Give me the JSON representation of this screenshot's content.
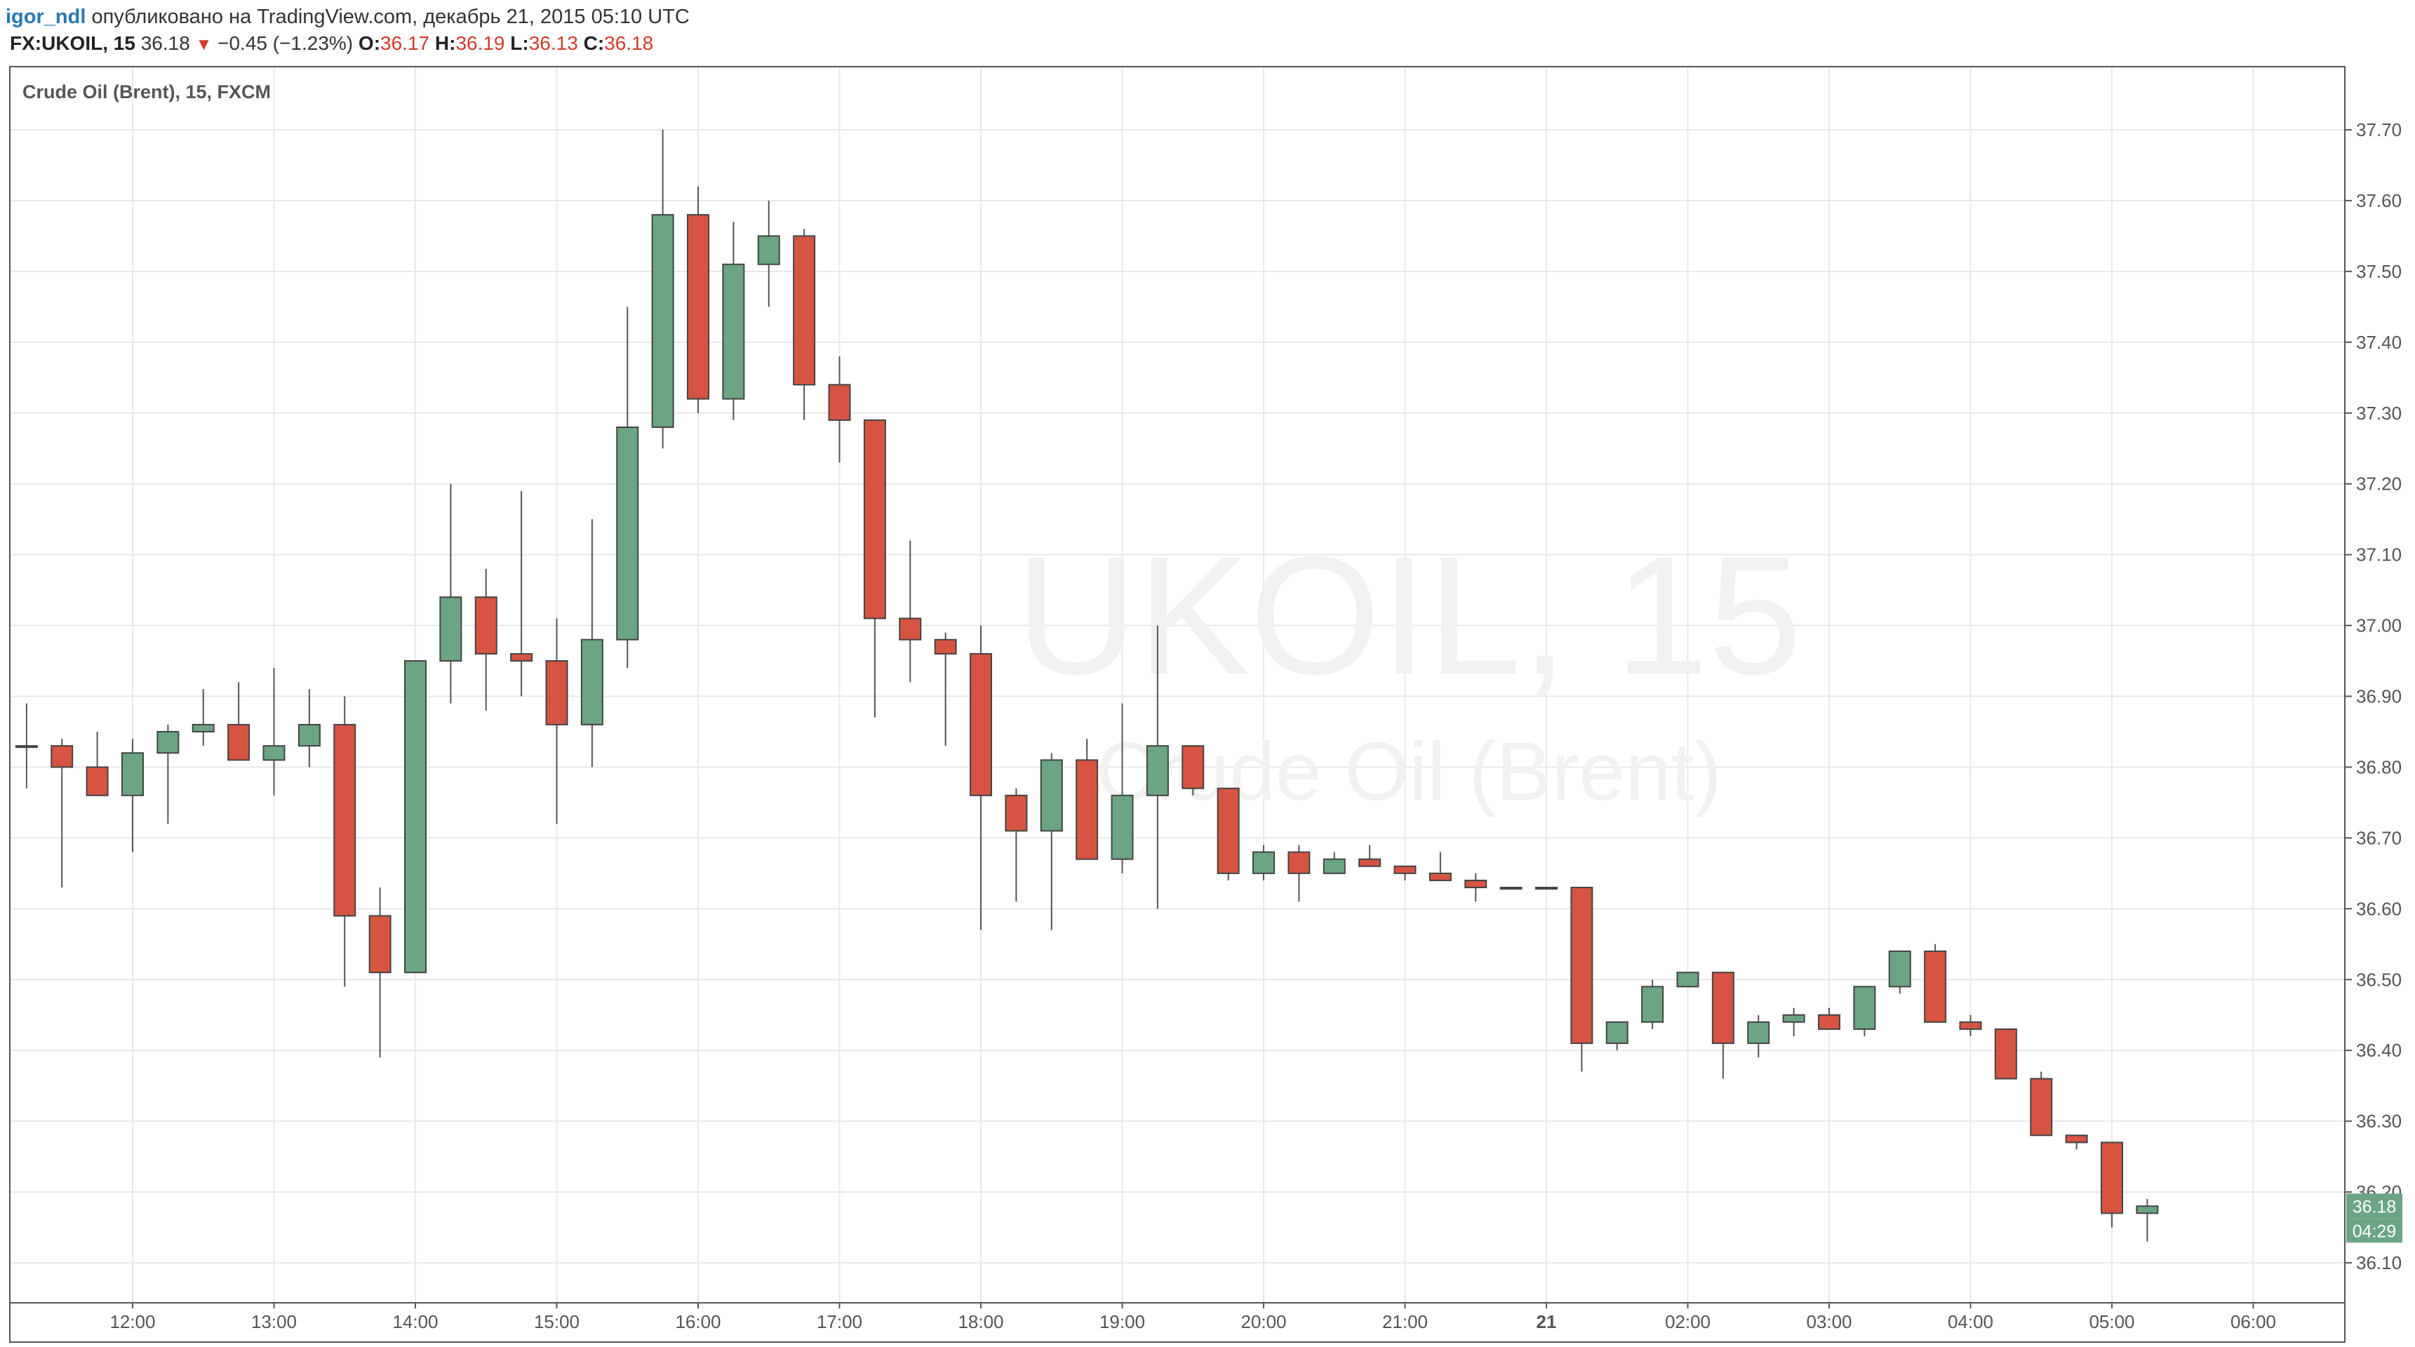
{
  "header": {
    "user": "igor_ndl",
    "published_text": "опубликовано на TradingView.com, декабрь 21, 2015 05:10 UTC",
    "symbol": "FX:UKOIL, 15",
    "last": "36.18",
    "change_arrow": "▼",
    "change": "−0.45 (−1.23%)",
    "o_label": "O:",
    "o_val": "36.17",
    "h_label": "H:",
    "h_val": "36.19",
    "l_label": "L:",
    "l_val": "36.13",
    "c_label": "C:",
    "c_val": "36.18"
  },
  "colors": {
    "up": "#6ba583",
    "down": "#d75442",
    "grid": "#e8e8e8",
    "border": "#555555"
  },
  "chart_data": {
    "type": "candlestick",
    "title": "Crude Oil (Brent), 15, FXCM",
    "watermark_symbol": "UKOIL, 15",
    "watermark_name": "Crude Oil (Brent)",
    "interval_minutes": 15,
    "y_ticks": [
      "37.70",
      "37.60",
      "37.50",
      "37.40",
      "37.30",
      "37.20",
      "37.10",
      "37.00",
      "36.90",
      "36.80",
      "36.70",
      "36.60",
      "36.50",
      "36.40",
      "36.30",
      "36.20",
      "36.10"
    ],
    "ylim": [
      36.04,
      37.78
    ],
    "x_ticks": [
      {
        "label": "12:00",
        "t": 0
      },
      {
        "label": "13:00",
        "t": 60
      },
      {
        "label": "14:00",
        "t": 120
      },
      {
        "label": "15:00",
        "t": 180
      },
      {
        "label": "16:00",
        "t": 240
      },
      {
        "label": "17:00",
        "t": 300
      },
      {
        "label": "18:00",
        "t": 360
      },
      {
        "label": "19:00",
        "t": 420
      },
      {
        "label": "20:00",
        "t": 480
      },
      {
        "label": "21:00",
        "t": 540
      },
      {
        "label": "21",
        "t": 600,
        "bold": true
      },
      {
        "label": "02:00",
        "t": 660
      },
      {
        "label": "03:00",
        "t": 720
      },
      {
        "label": "04:00",
        "t": 780
      },
      {
        "label": "05:00",
        "t": 840
      },
      {
        "label": "06:00",
        "t": 900
      }
    ],
    "last_price_label": "36.18",
    "countdown_label": "04:29",
    "candles": [
      {
        "t": -45,
        "o": 36.83,
        "h": 36.89,
        "l": 36.77,
        "c": 36.83
      },
      {
        "t": -30,
        "o": 36.83,
        "h": 36.84,
        "l": 36.63,
        "c": 36.8
      },
      {
        "t": -15,
        "o": 36.8,
        "h": 36.85,
        "l": 36.76,
        "c": 36.76
      },
      {
        "t": 0,
        "o": 36.76,
        "h": 36.84,
        "l": 36.68,
        "c": 36.82
      },
      {
        "t": 15,
        "o": 36.82,
        "h": 36.86,
        "l": 36.72,
        "c": 36.85
      },
      {
        "t": 30,
        "o": 36.85,
        "h": 36.91,
        "l": 36.83,
        "c": 36.86
      },
      {
        "t": 45,
        "o": 36.86,
        "h": 36.92,
        "l": 36.81,
        "c": 36.81
      },
      {
        "t": 60,
        "o": 36.81,
        "h": 36.94,
        "l": 36.76,
        "c": 36.83
      },
      {
        "t": 75,
        "o": 36.83,
        "h": 36.91,
        "l": 36.8,
        "c": 36.86
      },
      {
        "t": 90,
        "o": 36.86,
        "h": 36.9,
        "l": 36.49,
        "c": 36.59
      },
      {
        "t": 105,
        "o": 36.59,
        "h": 36.63,
        "l": 36.39,
        "c": 36.51
      },
      {
        "t": 120,
        "o": 36.51,
        "h": 36.95,
        "l": 36.51,
        "c": 36.95
      },
      {
        "t": 135,
        "o": 36.95,
        "h": 37.2,
        "l": 36.89,
        "c": 37.04
      },
      {
        "t": 150,
        "o": 37.04,
        "h": 37.08,
        "l": 36.88,
        "c": 36.96
      },
      {
        "t": 165,
        "o": 36.96,
        "h": 37.19,
        "l": 36.9,
        "c": 36.95
      },
      {
        "t": 180,
        "o": 36.95,
        "h": 37.01,
        "l": 36.72,
        "c": 36.86
      },
      {
        "t": 195,
        "o": 36.86,
        "h": 37.15,
        "l": 36.8,
        "c": 36.98
      },
      {
        "t": 210,
        "o": 36.98,
        "h": 37.45,
        "l": 36.94,
        "c": 37.28
      },
      {
        "t": 225,
        "o": 37.28,
        "h": 37.7,
        "l": 37.25,
        "c": 37.58
      },
      {
        "t": 240,
        "o": 37.58,
        "h": 37.62,
        "l": 37.3,
        "c": 37.32
      },
      {
        "t": 255,
        "o": 37.32,
        "h": 37.57,
        "l": 37.29,
        "c": 37.51
      },
      {
        "t": 270,
        "o": 37.51,
        "h": 37.6,
        "l": 37.45,
        "c": 37.55
      },
      {
        "t": 285,
        "o": 37.55,
        "h": 37.56,
        "l": 37.29,
        "c": 37.34
      },
      {
        "t": 300,
        "o": 37.34,
        "h": 37.38,
        "l": 37.23,
        "c": 37.29
      },
      {
        "t": 315,
        "o": 37.29,
        "h": 37.29,
        "l": 36.87,
        "c": 37.01
      },
      {
        "t": 330,
        "o": 37.01,
        "h": 37.12,
        "l": 36.92,
        "c": 36.98
      },
      {
        "t": 345,
        "o": 36.98,
        "h": 36.99,
        "l": 36.83,
        "c": 36.96
      },
      {
        "t": 360,
        "o": 36.96,
        "h": 37.0,
        "l": 36.57,
        "c": 36.76
      },
      {
        "t": 375,
        "o": 36.76,
        "h": 36.77,
        "l": 36.61,
        "c": 36.71
      },
      {
        "t": 390,
        "o": 36.71,
        "h": 36.82,
        "l": 36.57,
        "c": 36.81
      },
      {
        "t": 405,
        "o": 36.81,
        "h": 36.84,
        "l": 36.67,
        "c": 36.67
      },
      {
        "t": 420,
        "o": 36.67,
        "h": 36.89,
        "l": 36.65,
        "c": 36.76
      },
      {
        "t": 435,
        "o": 36.76,
        "h": 37.0,
        "l": 36.6,
        "c": 36.83
      },
      {
        "t": 450,
        "o": 36.83,
        "h": 36.83,
        "l": 36.76,
        "c": 36.77
      },
      {
        "t": 465,
        "o": 36.77,
        "h": 36.77,
        "l": 36.64,
        "c": 36.65
      },
      {
        "t": 480,
        "o": 36.65,
        "h": 36.69,
        "l": 36.64,
        "c": 36.68
      },
      {
        "t": 495,
        "o": 36.68,
        "h": 36.69,
        "l": 36.61,
        "c": 36.65
      },
      {
        "t": 510,
        "o": 36.65,
        "h": 36.68,
        "l": 36.65,
        "c": 36.67
      },
      {
        "t": 525,
        "o": 36.67,
        "h": 36.69,
        "l": 36.66,
        "c": 36.66
      },
      {
        "t": 540,
        "o": 36.66,
        "h": 36.66,
        "l": 36.64,
        "c": 36.65
      },
      {
        "t": 555,
        "o": 36.65,
        "h": 36.68,
        "l": 36.64,
        "c": 36.64
      },
      {
        "t": 570,
        "o": 36.64,
        "h": 36.65,
        "l": 36.61,
        "c": 36.63
      },
      {
        "t": 585,
        "o": 36.63,
        "h": 36.63,
        "l": 36.63,
        "c": 36.63
      },
      {
        "t": 600,
        "o": 36.63,
        "h": 36.63,
        "l": 36.63,
        "c": 36.63
      },
      {
        "t": 615,
        "o": 36.63,
        "h": 36.63,
        "l": 36.37,
        "c": 36.41
      },
      {
        "t": 630,
        "o": 36.41,
        "h": 36.44,
        "l": 36.4,
        "c": 36.44
      },
      {
        "t": 645,
        "o": 36.44,
        "h": 36.5,
        "l": 36.43,
        "c": 36.49
      },
      {
        "t": 660,
        "o": 36.49,
        "h": 36.51,
        "l": 36.49,
        "c": 36.51
      },
      {
        "t": 675,
        "o": 36.51,
        "h": 36.51,
        "l": 36.36,
        "c": 36.41
      },
      {
        "t": 690,
        "o": 36.41,
        "h": 36.45,
        "l": 36.39,
        "c": 36.44
      },
      {
        "t": 705,
        "o": 36.44,
        "h": 36.46,
        "l": 36.42,
        "c": 36.45
      },
      {
        "t": 720,
        "o": 36.45,
        "h": 36.46,
        "l": 36.43,
        "c": 36.43
      },
      {
        "t": 735,
        "o": 36.43,
        "h": 36.49,
        "l": 36.42,
        "c": 36.49
      },
      {
        "t": 750,
        "o": 36.49,
        "h": 36.54,
        "l": 36.48,
        "c": 36.54
      },
      {
        "t": 765,
        "o": 36.54,
        "h": 36.55,
        "l": 36.44,
        "c": 36.44
      },
      {
        "t": 780,
        "o": 36.44,
        "h": 36.45,
        "l": 36.42,
        "c": 36.43
      },
      {
        "t": 795,
        "o": 36.43,
        "h": 36.43,
        "l": 36.36,
        "c": 36.36
      },
      {
        "t": 810,
        "o": 36.36,
        "h": 36.37,
        "l": 36.28,
        "c": 36.28
      },
      {
        "t": 825,
        "o": 36.28,
        "h": 36.28,
        "l": 36.26,
        "c": 36.27
      },
      {
        "t": 840,
        "o": 36.27,
        "h": 36.27,
        "l": 36.15,
        "c": 36.17
      },
      {
        "t": 855,
        "o": 36.17,
        "h": 36.19,
        "l": 36.13,
        "c": 36.18
      }
    ]
  }
}
